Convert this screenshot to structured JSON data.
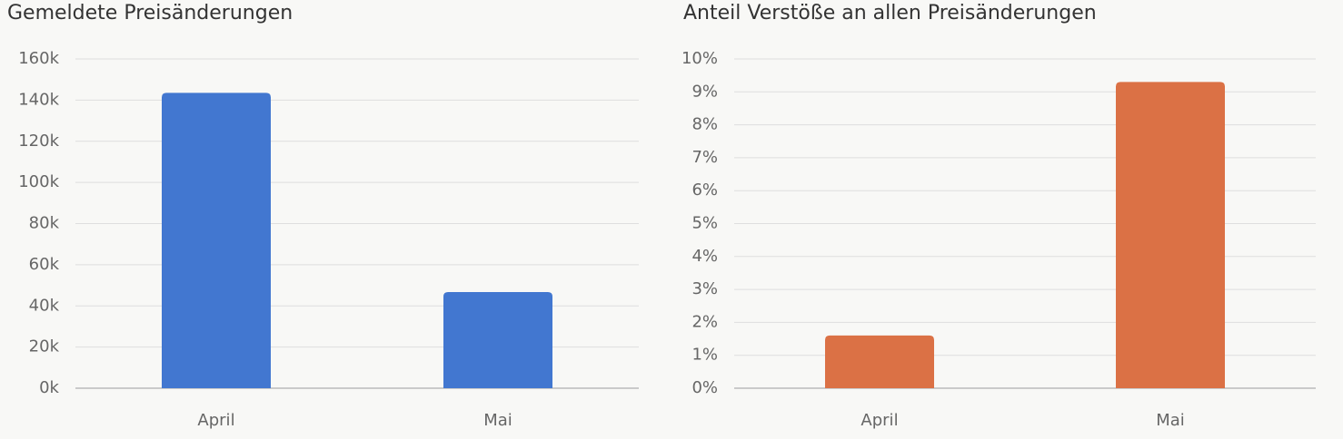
{
  "chart_data": [
    {
      "type": "bar",
      "title": "Gemeldete Preisänderungen",
      "categories": [
        "April",
        "Mai"
      ],
      "values": [
        143500,
        46700
      ],
      "color": "#4277d0",
      "ylim": [
        0,
        160000
      ],
      "yticks": [
        {
          "value": 0,
          "label": "0k"
        },
        {
          "value": 20000,
          "label": "20k"
        },
        {
          "value": 40000,
          "label": "40k"
        },
        {
          "value": 60000,
          "label": "60k"
        },
        {
          "value": 80000,
          "label": "80k"
        },
        {
          "value": 100000,
          "label": "100k"
        },
        {
          "value": 120000,
          "label": "120k"
        },
        {
          "value": 140000,
          "label": "140k"
        },
        {
          "value": 160000,
          "label": "160k"
        }
      ],
      "grid": true
    },
    {
      "type": "bar",
      "title": "Anteil Verstöße an allen Preisänderungen",
      "categories": [
        "April",
        "Mai"
      ],
      "values": [
        1.6,
        9.3
      ],
      "color": "#db7145",
      "ylim": [
        0,
        10
      ],
      "yticks": [
        {
          "value": 0,
          "label": "0%"
        },
        {
          "value": 1,
          "label": "1%"
        },
        {
          "value": 2,
          "label": "2%"
        },
        {
          "value": 3,
          "label": "3%"
        },
        {
          "value": 4,
          "label": "4%"
        },
        {
          "value": 5,
          "label": "5%"
        },
        {
          "value": 6,
          "label": "6%"
        },
        {
          "value": 7,
          "label": "7%"
        },
        {
          "value": 8,
          "label": "8%"
        },
        {
          "value": 9,
          "label": "9%"
        },
        {
          "value": 10,
          "label": "10%"
        }
      ],
      "grid": true
    }
  ]
}
